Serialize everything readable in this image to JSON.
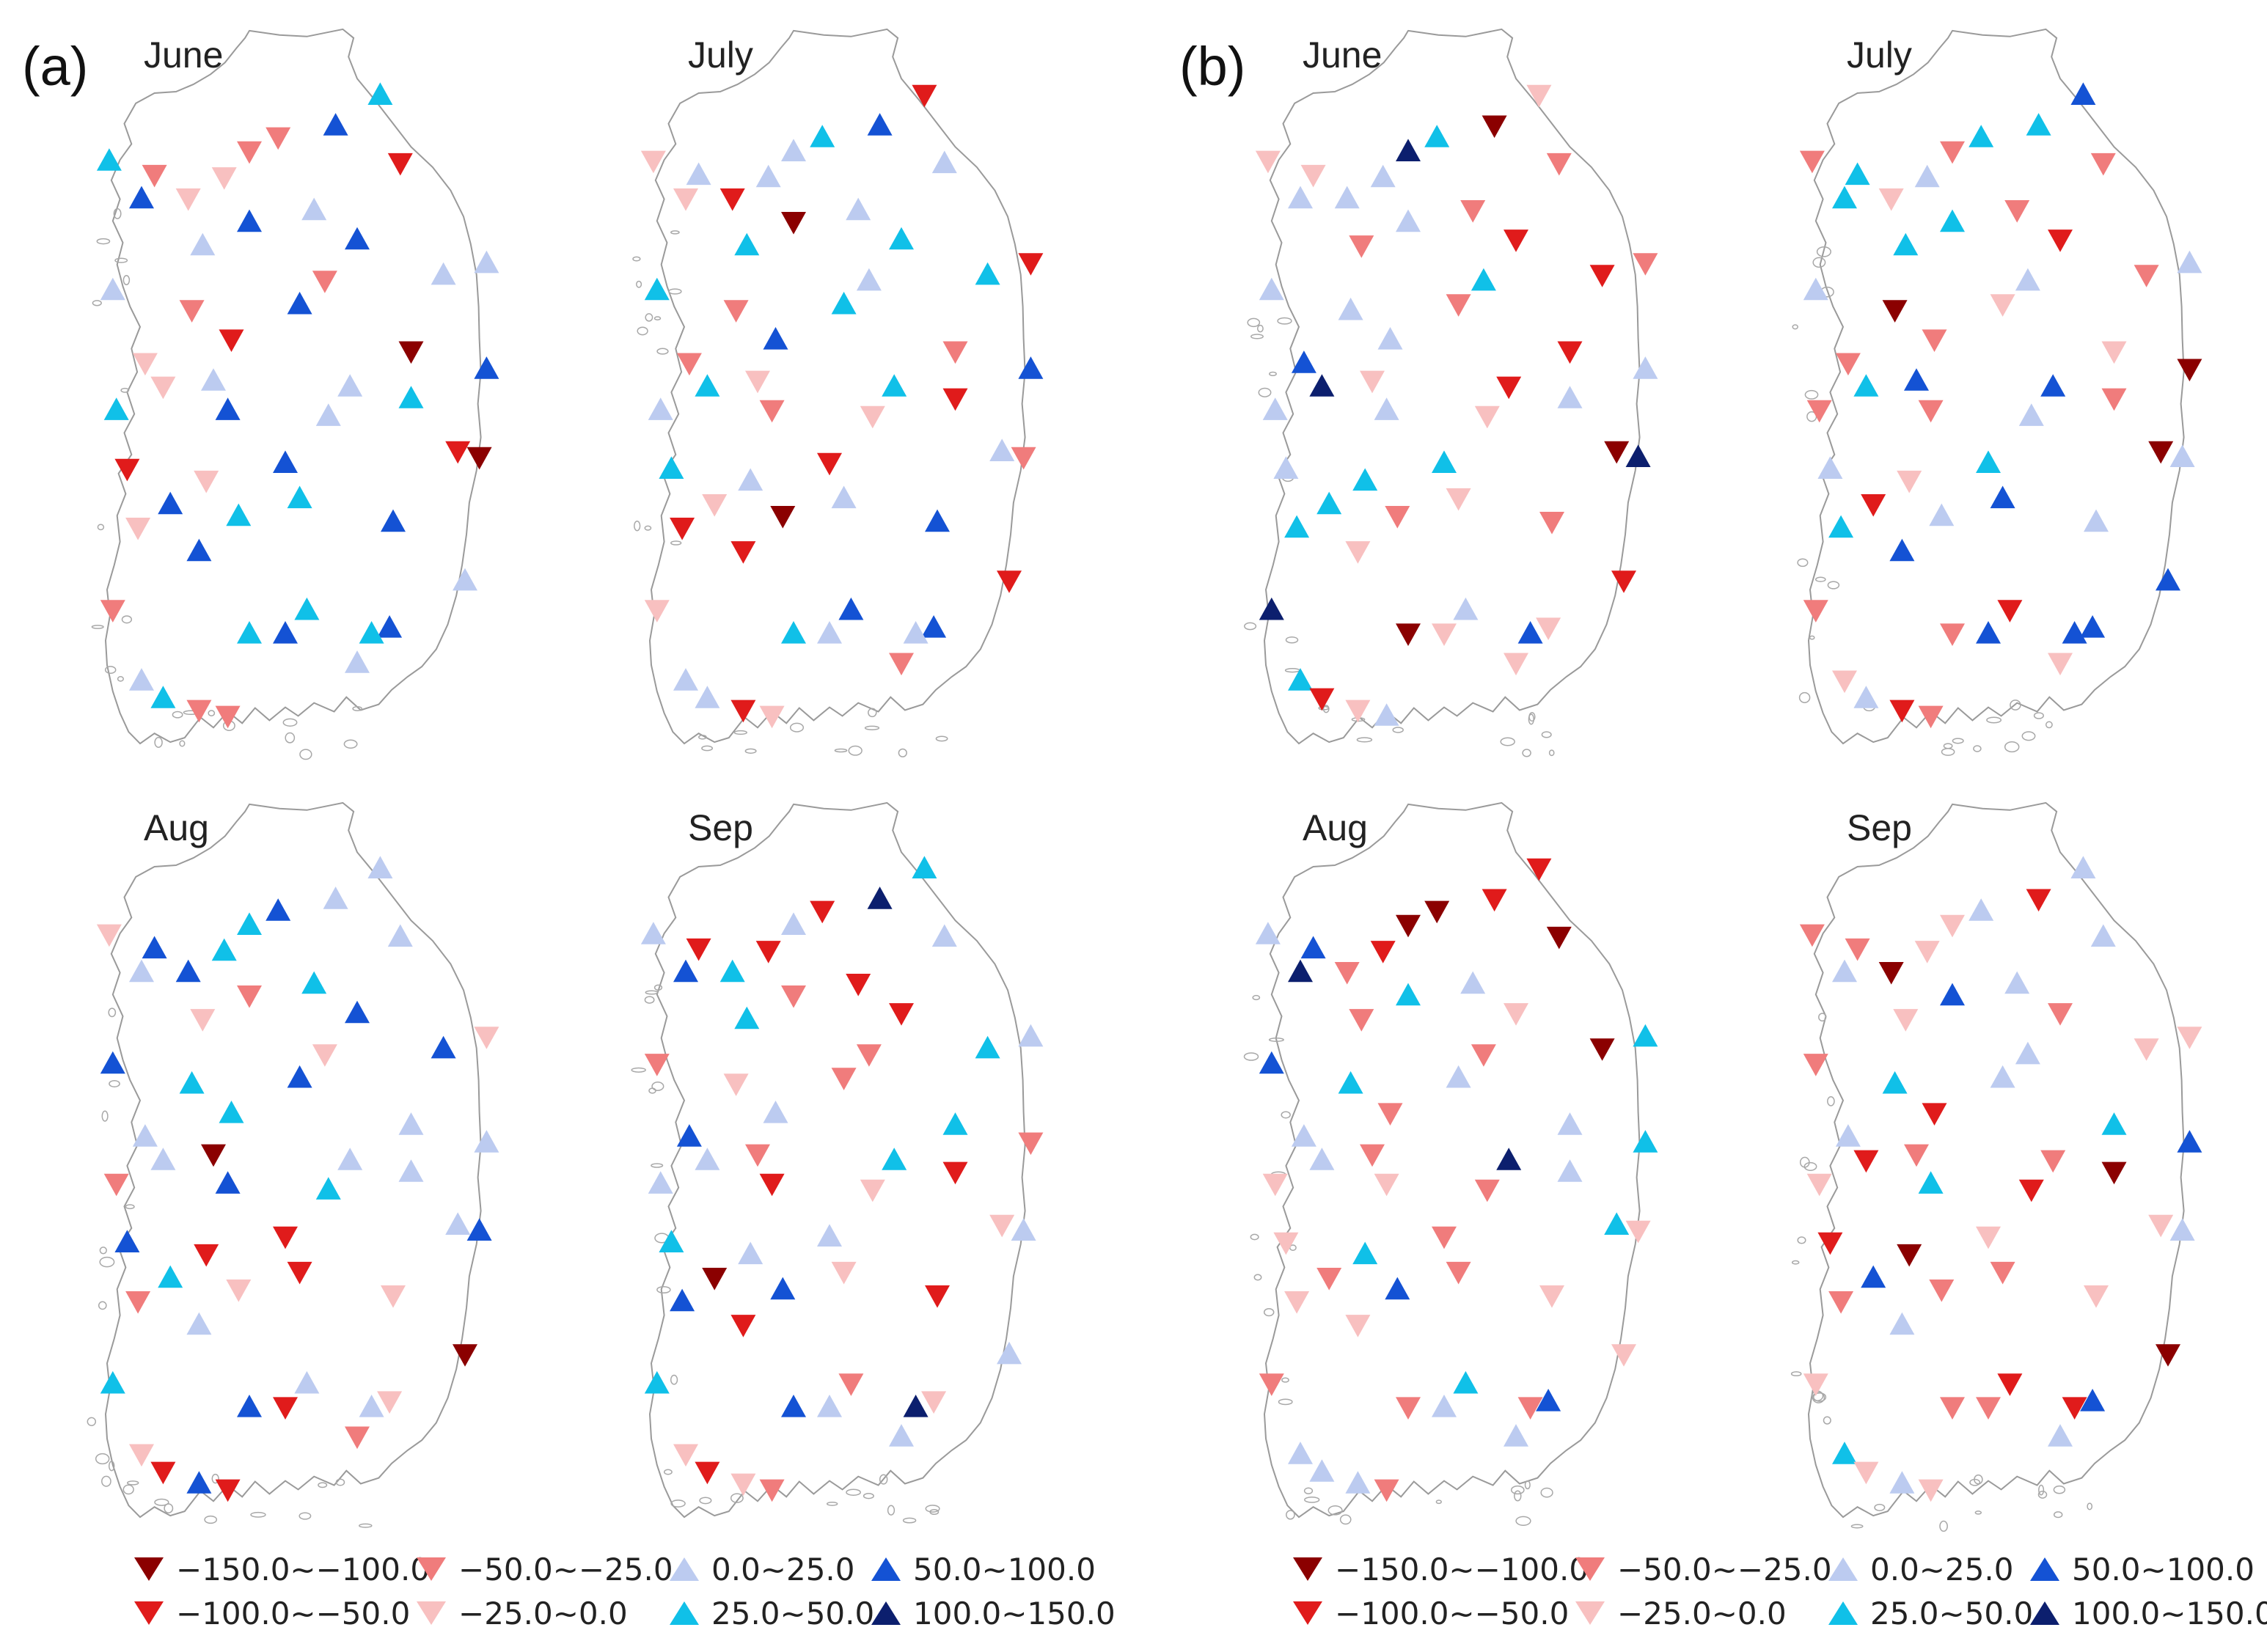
{
  "panels": [
    {
      "label": "(a)",
      "months": [
        "June",
        "July",
        "Aug",
        "Sep"
      ]
    },
    {
      "label": "(b)",
      "months": [
        "June",
        "July",
        "Aug",
        "Sep"
      ]
    }
  ],
  "legend": [
    {
      "range": "−150.0~−100.0",
      "symbol": "down-triangle",
      "color": "#8b0000"
    },
    {
      "range": "−100.0~−50.0",
      "symbol": "down-triangle",
      "color": "#e01b1b"
    },
    {
      "range": "−50.0~−25.0",
      "symbol": "down-triangle",
      "color": "#f07c7c"
    },
    {
      "range": "−25.0~0.0",
      "symbol": "down-triangle",
      "color": "#f8c0c0"
    },
    {
      "range": "0.0~25.0",
      "symbol": "up-triangle",
      "color": "#bccbf0"
    },
    {
      "range": "25.0~50.0",
      "symbol": "up-triangle",
      "color": "#10c0e8"
    },
    {
      "range": "50.0~100.0",
      "symbol": "up-triangle",
      "color": "#1452d4"
    },
    {
      "range": "100.0~150.0",
      "symbol": "up-triangle",
      "color": "#0c1f6e"
    }
  ]
}
